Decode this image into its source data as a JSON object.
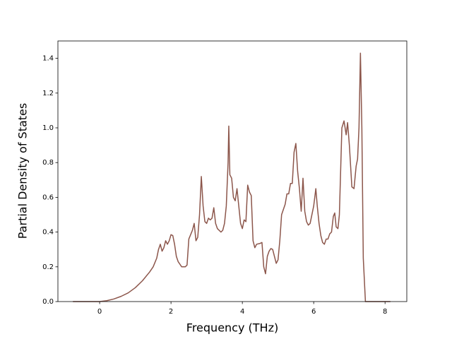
{
  "chart_data": {
    "type": "line",
    "xlabel": "Frequency (THz)",
    "ylabel": "Partial Density of States",
    "color": "#8c564b",
    "x": [
      -0.75,
      0,
      0.2,
      0.4,
      0.6,
      0.8,
      1.0,
      1.2,
      1.4,
      1.5,
      1.6,
      1.65,
      1.7,
      1.75,
      1.8,
      1.85,
      1.9,
      1.95,
      2.0,
      2.05,
      2.1,
      2.15,
      2.2,
      2.3,
      2.4,
      2.45,
      2.5,
      2.6,
      2.65,
      2.7,
      2.75,
      2.8,
      2.85,
      2.9,
      2.95,
      3.0,
      3.05,
      3.1,
      3.15,
      3.2,
      3.25,
      3.3,
      3.4,
      3.45,
      3.5,
      3.55,
      3.6,
      3.62,
      3.65,
      3.7,
      3.75,
      3.8,
      3.85,
      3.9,
      3.95,
      4.0,
      4.05,
      4.1,
      4.15,
      4.2,
      4.25,
      4.3,
      4.35,
      4.4,
      4.5,
      4.55,
      4.6,
      4.65,
      4.7,
      4.75,
      4.8,
      4.85,
      4.9,
      4.95,
      5.0,
      5.05,
      5.1,
      5.2,
      5.25,
      5.3,
      5.35,
      5.4,
      5.45,
      5.5,
      5.55,
      5.6,
      5.65,
      5.7,
      5.75,
      5.8,
      5.85,
      5.9,
      6.0,
      6.06,
      6.1,
      6.15,
      6.2,
      6.25,
      6.3,
      6.35,
      6.4,
      6.45,
      6.5,
      6.55,
      6.59,
      6.63,
      6.68,
      6.72,
      6.79,
      6.85,
      6.91,
      6.95,
      7.0,
      7.07,
      7.13,
      7.19,
      7.23,
      7.27,
      7.31,
      7.35,
      7.39,
      7.45,
      8.15
    ],
    "values": [
      0,
      0,
      0.005,
      0.015,
      0.03,
      0.05,
      0.08,
      0.12,
      0.17,
      0.2,
      0.25,
      0.3,
      0.33,
      0.29,
      0.31,
      0.35,
      0.33,
      0.35,
      0.385,
      0.38,
      0.33,
      0.26,
      0.23,
      0.2,
      0.2,
      0.21,
      0.36,
      0.41,
      0.45,
      0.35,
      0.37,
      0.5,
      0.72,
      0.55,
      0.46,
      0.45,
      0.48,
      0.47,
      0.48,
      0.54,
      0.45,
      0.42,
      0.4,
      0.41,
      0.45,
      0.55,
      0.8,
      1.01,
      0.73,
      0.71,
      0.6,
      0.58,
      0.65,
      0.55,
      0.45,
      0.42,
      0.47,
      0.46,
      0.67,
      0.63,
      0.61,
      0.35,
      0.31,
      0.33,
      0.335,
      0.34,
      0.2,
      0.16,
      0.26,
      0.29,
      0.305,
      0.3,
      0.26,
      0.22,
      0.24,
      0.35,
      0.5,
      0.56,
      0.62,
      0.62,
      0.68,
      0.68,
      0.86,
      0.91,
      0.75,
      0.65,
      0.52,
      0.71,
      0.52,
      0.46,
      0.44,
      0.45,
      0.55,
      0.65,
      0.55,
      0.45,
      0.38,
      0.34,
      0.33,
      0.36,
      0.36,
      0.39,
      0.4,
      0.49,
      0.51,
      0.43,
      0.42,
      0.5,
      1.0,
      1.04,
      0.96,
      1.03,
      0.9,
      0.66,
      0.65,
      0.78,
      0.82,
      1.0,
      1.43,
      1.0,
      0.25,
      0,
      0
    ],
    "xlim": [
      -1.17,
      8.61
    ],
    "ylim": [
      0,
      1.5
    ],
    "xticks": [
      0,
      2,
      4,
      6,
      8
    ],
    "yticks": [
      {
        "value": 0,
        "label": "0.0"
      },
      0.2,
      0.4,
      0.6,
      0.8,
      {
        "value": 1,
        "label": "1.0"
      },
      1.2,
      1.4
    ]
  }
}
